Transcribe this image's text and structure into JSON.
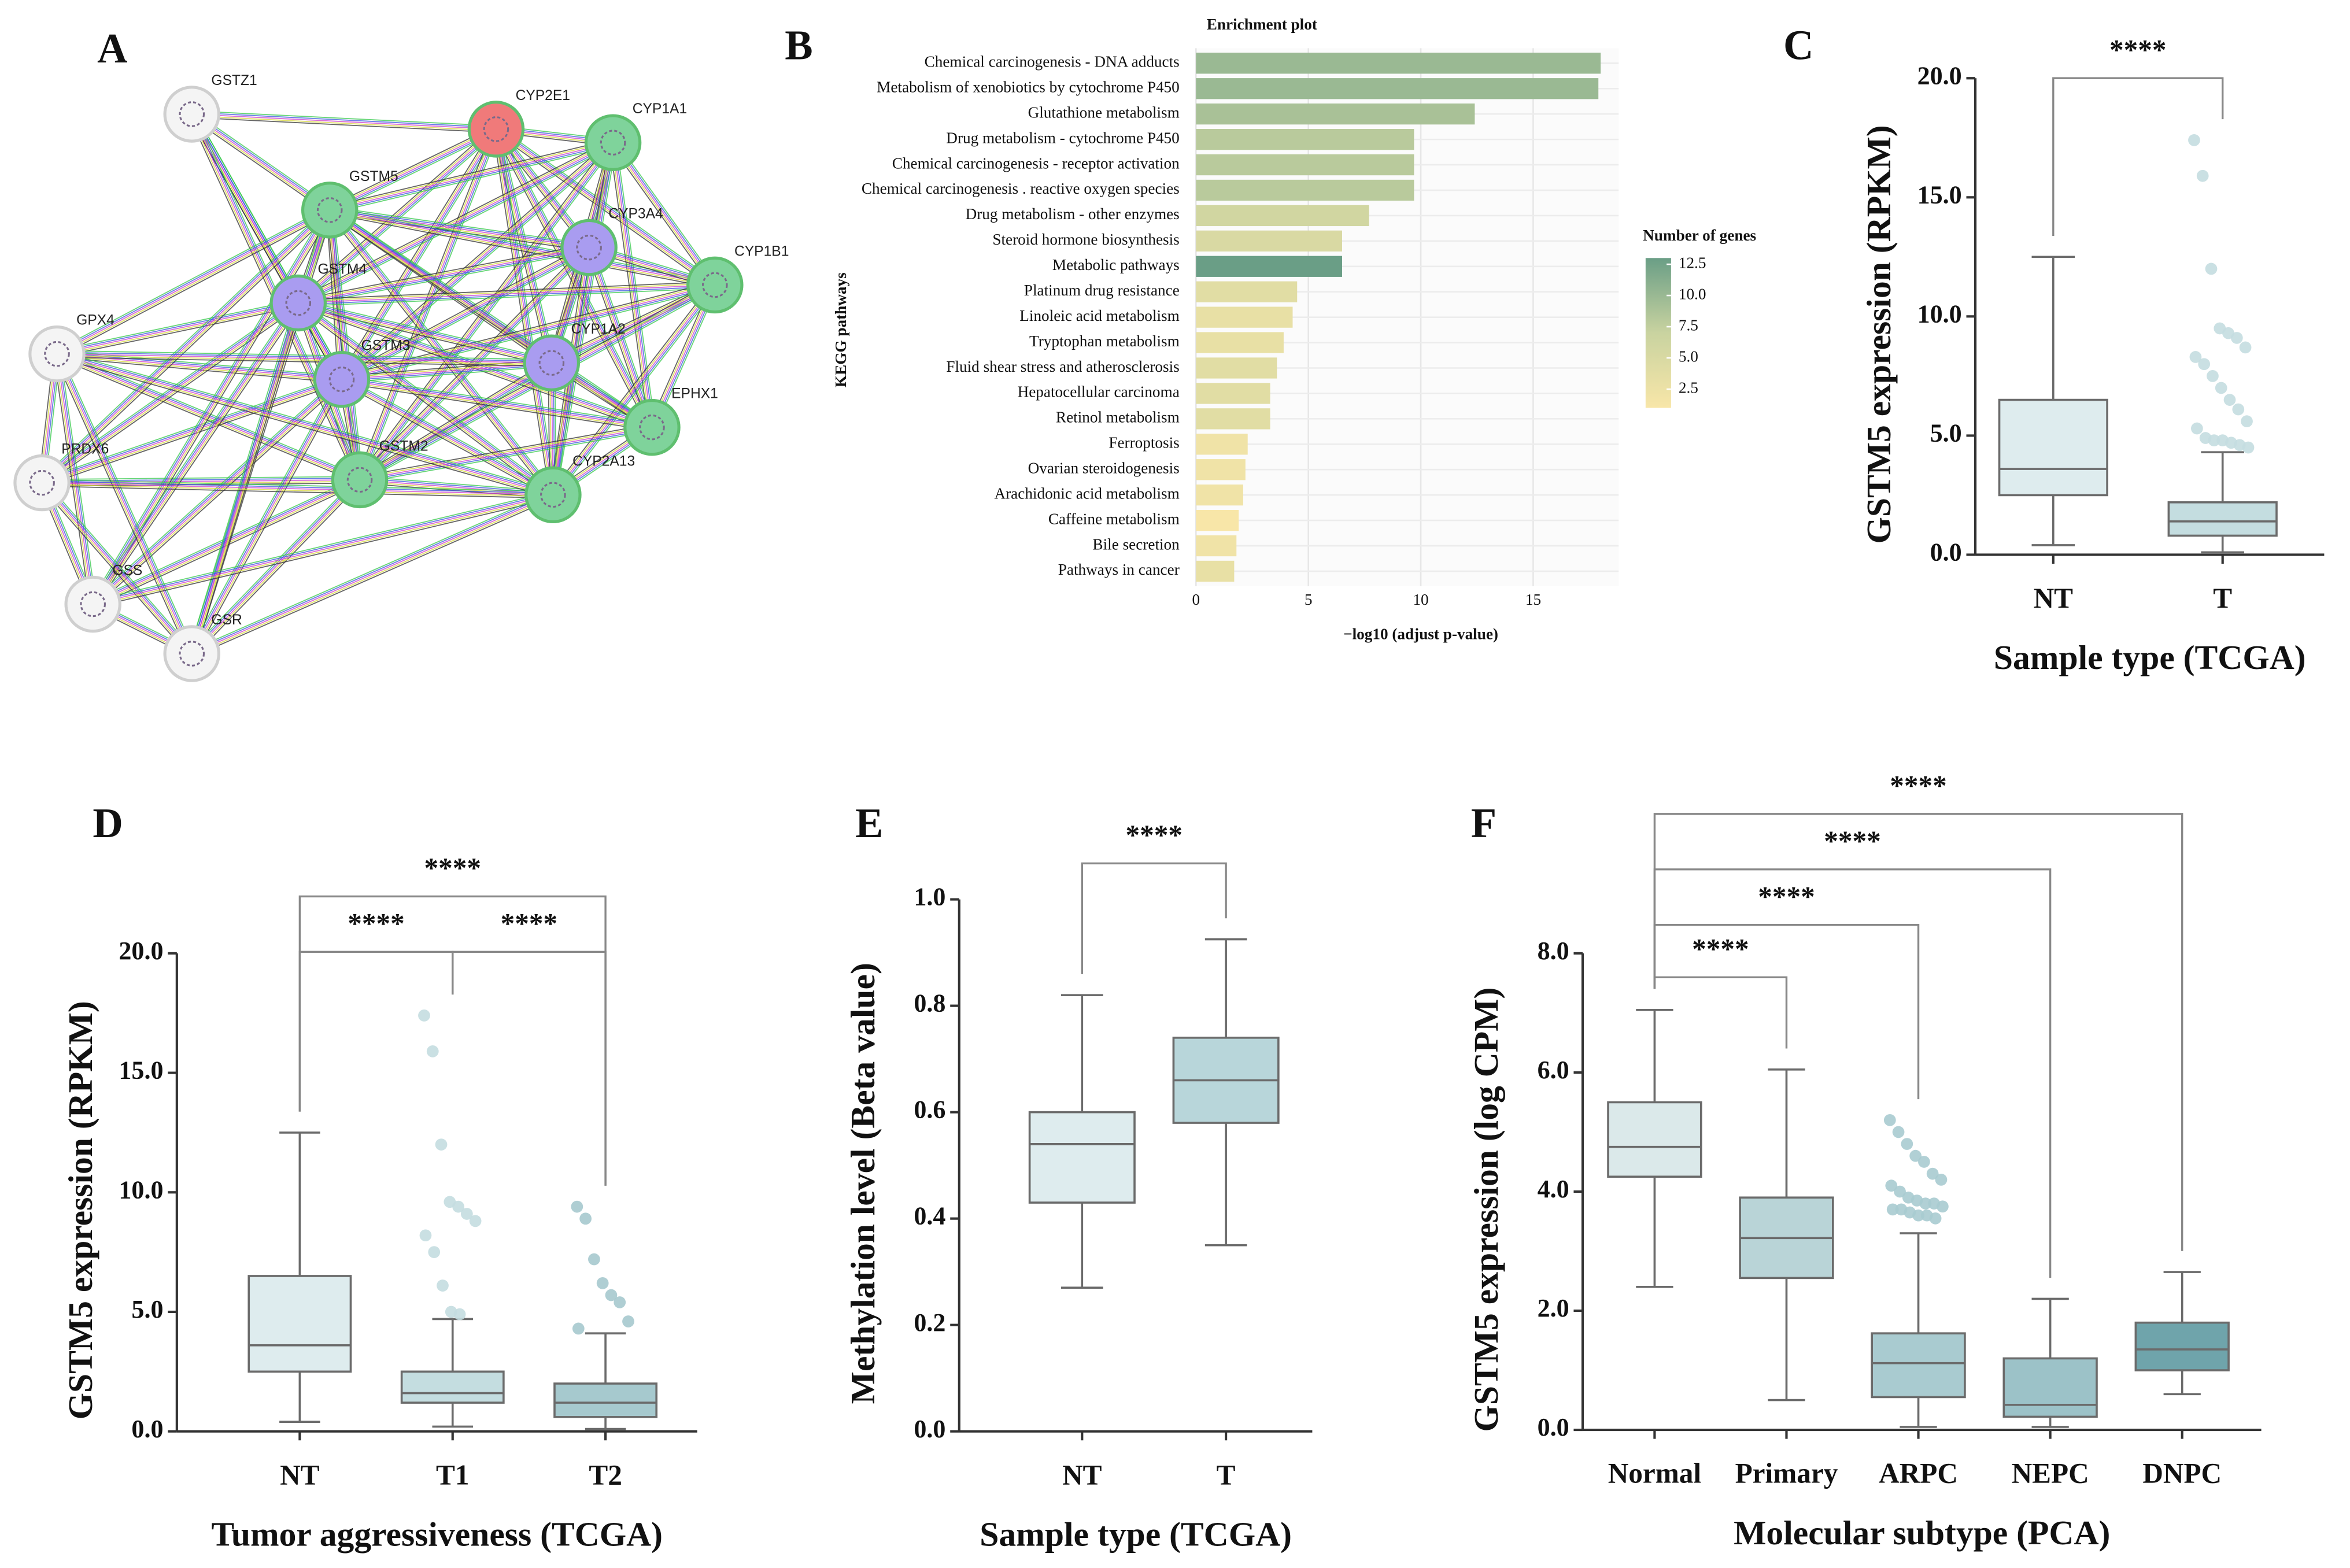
{
  "chart_data": [
    {
      "type": "network",
      "panel_label": "A",
      "nodes": [
        "GSTZ1",
        "CYP2E1",
        "CYP1A1",
        "GSTM5",
        "CYP3A4",
        "CYP1B1",
        "GSTM4",
        "GPX4",
        "CYP1A2",
        "GSTM3",
        "EPHX1",
        "PRDX6",
        "GSTM2",
        "CYP2A13",
        "GSS",
        "GSR"
      ]
    },
    {
      "type": "bar",
      "panel_label": "B",
      "orientation": "horizontal",
      "title": "Enrichment plot",
      "x_label": "−log10 (adjust p-value)",
      "y_label": "KEGG pathways",
      "categories": [
        "Chemical carcinogenesis - DNA adducts",
        "Metabolism of xenobiotics by cytochrome P450",
        "Glutathione metabolism",
        "Drug metabolism - cytochrome P450",
        "Chemical carcinogenesis - receptor activation",
        "Chemical carcinogenesis . reactive oxygen species",
        "Drug metabolism - other enzymes",
        "Steroid hormone biosynthesis",
        "Metabolic pathways",
        "Platinum drug resistance",
        "Linoleic acid metabolism",
        "Tryptophan metabolism",
        "Fluid shear stress and atherosclerosis",
        "Hepatocellular carcinoma",
        "Retinol metabolism",
        "Ferroptosis",
        "Ovarian steroidogenesis",
        "Arachidonic acid metabolism",
        "Caffeine metabolism",
        "Bile secretion",
        "Pathways in cancer"
      ],
      "values": [
        18.0,
        17.9,
        12.4,
        9.7,
        9.7,
        9.7,
        7.7,
        6.5,
        6.5,
        4.5,
        4.3,
        3.9,
        3.6,
        3.3,
        3.3,
        2.3,
        2.2,
        2.1,
        1.9,
        1.8,
        1.7
      ],
      "gene_counts": [
        10,
        10,
        9,
        8,
        8,
        8,
        6,
        5,
        13,
        4,
        3,
        3,
        4,
        4,
        4,
        2,
        2,
        2,
        1,
        2,
        3
      ],
      "color_legend_title": "Number of genes",
      "colormap": [
        "#f8e6a8",
        "#c9d3a0",
        "#6a9e86"
      ],
      "color_lim": [
        1,
        13
      ],
      "color_ticks": [
        2.5,
        {
          "value": 5,
          "label": "5.0"
        },
        7.5,
        {
          "value": 10,
          "label": "10.0"
        },
        12.5
      ],
      "xlim": [
        0,
        18.8
      ],
      "xticks": [
        0,
        5,
        10,
        15
      ],
      "grid": true
    },
    {
      "type": "box",
      "panel_label": "C",
      "y_label": "GSTM5 expression (RPKM)",
      "x_label": "Sample type (TCGA)",
      "categories": [
        "NT",
        "T"
      ],
      "boxes": [
        {
          "min": 0.4,
          "q1": 2.5,
          "median": 3.6,
          "q3": 6.5,
          "max": 12.5,
          "outliers": [],
          "color": "#deecee"
        },
        {
          "min": 0.1,
          "q1": 0.8,
          "median": 1.4,
          "q3": 2.2,
          "max": 4.3,
          "outliers": [
            17.4,
            15.9,
            12.0,
            9.5,
            9.3,
            9.1,
            8.7,
            8.3,
            8.0,
            7.5,
            7.0,
            6.5,
            6.1,
            5.6,
            5.3,
            4.9,
            4.8,
            4.8,
            4.7,
            4.6,
            4.5
          ],
          "color": "#c4dde0"
        }
      ],
      "ylim": [
        0,
        20
      ],
      "yticks": [
        {
          "value": 0,
          "label": "0.0"
        },
        {
          "value": 5,
          "label": "5.0"
        },
        {
          "value": 10,
          "label": "10.0"
        },
        {
          "value": 15,
          "label": "15.0"
        },
        {
          "value": 20,
          "label": "20.0"
        }
      ],
      "significance": [
        {
          "pair": [
            "NT",
            "T"
          ],
          "label": "****"
        }
      ]
    },
    {
      "type": "box",
      "panel_label": "D",
      "y_label": "GSTM5 expression (RPKM)",
      "x_label": "Tumor aggressiveness (TCGA)",
      "categories": [
        "NT",
        "T1",
        "T2"
      ],
      "boxes": [
        {
          "min": 0.4,
          "q1": 2.5,
          "median": 3.6,
          "q3": 6.5,
          "max": 12.5,
          "outliers": [],
          "color": "#deecee"
        },
        {
          "min": 0.2,
          "q1": 1.2,
          "median": 1.6,
          "q3": 2.5,
          "max": 4.7,
          "outliers": [
            17.4,
            15.9,
            12.0,
            9.6,
            9.4,
            9.1,
            8.8,
            8.2,
            7.5,
            6.1,
            5.0,
            4.9
          ],
          "color": "#c4dde0"
        },
        {
          "min": 0.1,
          "q1": 0.6,
          "median": 1.2,
          "q3": 2.0,
          "max": 4.1,
          "outliers": [
            9.4,
            8.9,
            7.2,
            6.2,
            5.7,
            5.4,
            4.6,
            4.3
          ],
          "color": "#a6c9ce"
        }
      ],
      "ylim": [
        0,
        20
      ],
      "yticks": [
        {
          "value": 0,
          "label": "0.0"
        },
        {
          "value": 5,
          "label": "5.0"
        },
        {
          "value": 10,
          "label": "10.0"
        },
        {
          "value": 15,
          "label": "15.0"
        },
        {
          "value": 20,
          "label": "20.0"
        }
      ],
      "significance": [
        {
          "pair": [
            "NT",
            "T1"
          ],
          "label": "****"
        },
        {
          "pair": [
            "T1",
            "T2"
          ],
          "label": "****"
        },
        {
          "pair": [
            "NT",
            "T2"
          ],
          "label": "****"
        }
      ]
    },
    {
      "type": "box",
      "panel_label": "E",
      "y_label": "Methylation level (Beta value)",
      "x_label": "Sample type (TCGA)",
      "categories": [
        "NT",
        "T"
      ],
      "boxes": [
        {
          "min": 0.27,
          "q1": 0.43,
          "median": 0.54,
          "q3": 0.6,
          "max": 0.82,
          "outliers": [],
          "color": "#deecee"
        },
        {
          "min": 0.35,
          "q1": 0.58,
          "median": 0.66,
          "q3": 0.74,
          "max": 0.925,
          "outliers": [],
          "color": "#b8d6da"
        }
      ],
      "ylim": [
        0,
        1
      ],
      "yticks": [
        {
          "value": 0,
          "label": "0.0"
        },
        0.2,
        0.4,
        0.6,
        0.8,
        {
          "value": 1,
          "label": "1.0"
        }
      ],
      "significance": [
        {
          "pair": [
            "NT",
            "T"
          ],
          "label": "****"
        }
      ]
    },
    {
      "type": "box",
      "panel_label": "F",
      "y_label": "GSTM5 expression (log CPM)",
      "x_label": "Molecular subtype (PCA)",
      "categories": [
        "Normal",
        "Primary",
        "ARPC",
        "NEPC",
        "DNPC"
      ],
      "boxes": [
        {
          "min": 2.4,
          "q1": 4.25,
          "median": 4.75,
          "q3": 5.5,
          "max": 7.05,
          "outliers": [],
          "color": "#dbe9ea"
        },
        {
          "min": 0.5,
          "q1": 2.55,
          "median": 3.22,
          "q3": 3.9,
          "max": 6.05,
          "outliers": [],
          "color": "#b9d4d7"
        },
        {
          "min": 0.05,
          "q1": 0.55,
          "median": 1.12,
          "q3": 1.62,
          "max": 3.3,
          "outliers": [
            5.2,
            5.0,
            4.8,
            4.6,
            4.5,
            4.3,
            4.2,
            4.1,
            4.0,
            3.9,
            3.85,
            3.8,
            3.8,
            3.75,
            3.7,
            3.7,
            3.65,
            3.6,
            3.6,
            3.55
          ],
          "color": "#a9cbd0"
        },
        {
          "min": 0.05,
          "q1": 0.22,
          "median": 0.42,
          "q3": 1.2,
          "max": 2.2,
          "outliers": [],
          "color": "#9cc2c8"
        },
        {
          "min": 0.6,
          "q1": 1.0,
          "median": 1.35,
          "q3": 1.8,
          "max": 2.65,
          "outliers": [],
          "color": "#6fa4ab"
        }
      ],
      "ylim": [
        0,
        8
      ],
      "yticks": [
        {
          "value": 0,
          "label": "0.0"
        },
        {
          "value": 2,
          "label": "2.0"
        },
        {
          "value": 4,
          "label": "4.0"
        },
        {
          "value": 6,
          "label": "6.0"
        },
        {
          "value": 8,
          "label": "8.0"
        }
      ],
      "significance": [
        {
          "pair": [
            "Normal",
            "Primary"
          ],
          "label": "****"
        },
        {
          "pair": [
            "Normal",
            "ARPC"
          ],
          "label": "****"
        },
        {
          "pair": [
            "Normal",
            "NEPC"
          ],
          "label": "****"
        },
        {
          "pair": [
            "Normal",
            "DNPC"
          ],
          "label": "****"
        }
      ]
    }
  ]
}
